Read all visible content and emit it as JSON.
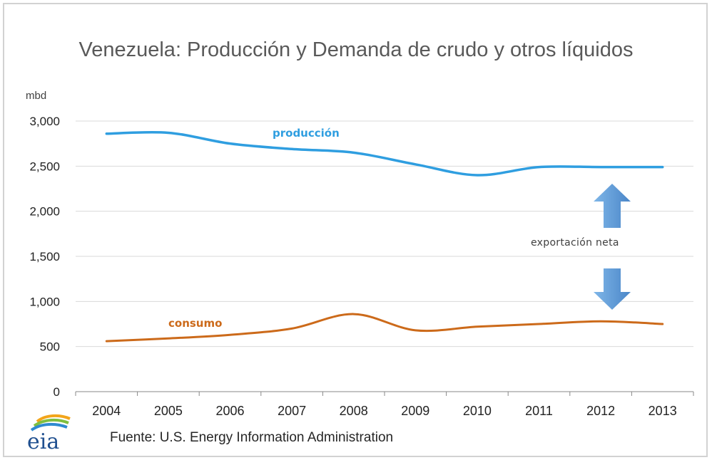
{
  "title": "Venezuela: Producción y Demanda de crudo y otros líquidos",
  "source": "Fuente: U.S. Energy Information Administration",
  "logo_text": "eia",
  "annotation": "exportación neta",
  "colors": {
    "produccion": "#2f9ee0",
    "consumo": "#cc6a1a",
    "arrow": "#5b9bd5",
    "grid": "#d9d9d9"
  },
  "chart_data": {
    "type": "line",
    "title": "Venezuela: Producción y Demanda de crudo y otros líquidos",
    "ylabel": "mbd",
    "xlabel": "",
    "x": [
      "2004",
      "2005",
      "2006",
      "2007",
      "2008",
      "2009",
      "2010",
      "2011",
      "2012",
      "2013"
    ],
    "ylim": [
      0,
      3000
    ],
    "yticks": [
      "0",
      "500",
      "1,000",
      "1,500",
      "2,000",
      "2,500",
      "3,000"
    ],
    "grid": true,
    "series": [
      {
        "name": "producción",
        "values": [
          2860,
          2870,
          2750,
          2690,
          2650,
          2520,
          2400,
          2490,
          2490,
          2490
        ]
      },
      {
        "name": "consumo",
        "values": [
          560,
          590,
          630,
          700,
          860,
          680,
          720,
          750,
          780,
          750
        ]
      }
    ]
  }
}
